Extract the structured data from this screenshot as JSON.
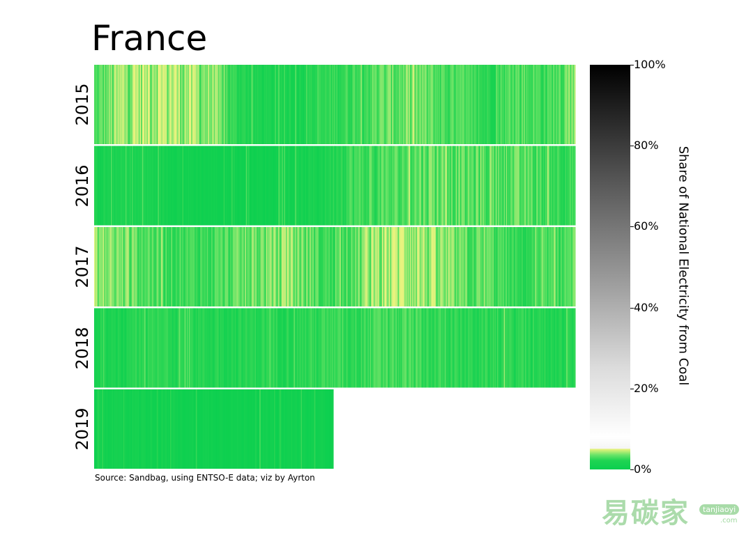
{
  "chart_data": {
    "type": "heatmap",
    "title": "France",
    "rows": [
      "2015",
      "2016",
      "2017",
      "2018",
      "2019"
    ],
    "row_coverage": [
      1.0,
      1.0,
      1.0,
      1.0,
      0.497
    ],
    "colorbar": {
      "label": "Share of National Electricity from Coal",
      "ticks": [
        "0%",
        "20%",
        "40%",
        "60%",
        "80%",
        "100%"
      ],
      "tick_values": [
        0,
        20,
        40,
        60,
        80,
        100
      ],
      "range": [
        0,
        100
      ]
    },
    "row_profiles": [
      [
        1.5,
        3.5,
        4.5,
        4,
        3,
        1,
        0.5,
        0.5,
        1,
        1.5,
        2,
        2.5,
        2,
        1.5,
        1,
        2,
        1.5,
        3
      ],
      [
        0.5,
        0.5,
        0.5,
        0.3,
        0.2,
        0.2,
        0.2,
        0.3,
        0.5,
        1.5,
        1.5,
        2,
        2.5,
        2,
        2,
        2,
        1.5,
        1.5
      ],
      [
        3,
        2.5,
        2,
        1.5,
        1.5,
        2,
        2.5,
        3,
        1.5,
        1.5,
        4,
        4.5,
        3,
        2,
        2,
        1,
        1.5,
        2
      ],
      [
        0.5,
        0.5,
        1,
        1,
        0.8,
        0.8,
        1,
        1,
        1.2,
        1.2,
        1.5,
        1.5,
        1.2,
        1,
        1,
        1,
        0.8,
        0.8
      ],
      [
        0.3,
        0.3,
        0.3,
        0.2,
        0.2,
        0.2,
        0.2,
        0.2,
        0.2
      ]
    ],
    "unit": "%"
  },
  "source": "Source: Sandbag, using ENTSO-E data; viz by Ayrton",
  "watermark": {
    "logo": "易碳家",
    "badge": "tanjiaoyi",
    "com": ".com"
  },
  "colors": {
    "low": "#0bcf4f",
    "mid": "#6ce468",
    "high_green": "#e6f27c"
  }
}
